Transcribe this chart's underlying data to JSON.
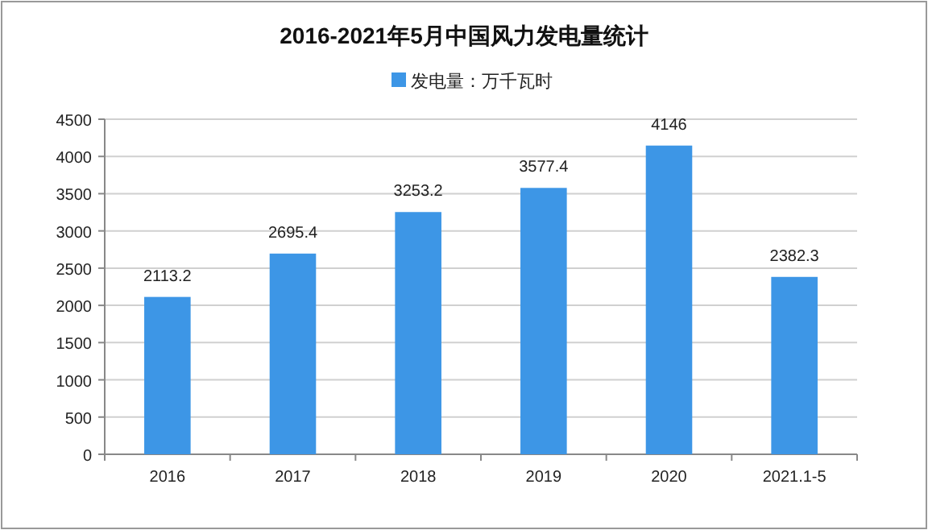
{
  "chart_data": {
    "type": "bar",
    "title": "2016-2021年5月中国风力发电量统计",
    "categories": [
      "2016",
      "2017",
      "2018",
      "2019",
      "2020",
      "2021.1-5"
    ],
    "series": [
      {
        "name": "发电量：万千瓦时",
        "color": "#3d96e6",
        "values": [
          2113.2,
          2695.4,
          3253.2,
          3577.4,
          4146,
          2382.3
        ]
      }
    ],
    "ylim": [
      0,
      4500
    ],
    "yticks": [
      0,
      500,
      1000,
      1500,
      2000,
      2500,
      3000,
      3500,
      4000,
      4500
    ],
    "grid": "y",
    "legend": "top",
    "data_labels": true
  }
}
